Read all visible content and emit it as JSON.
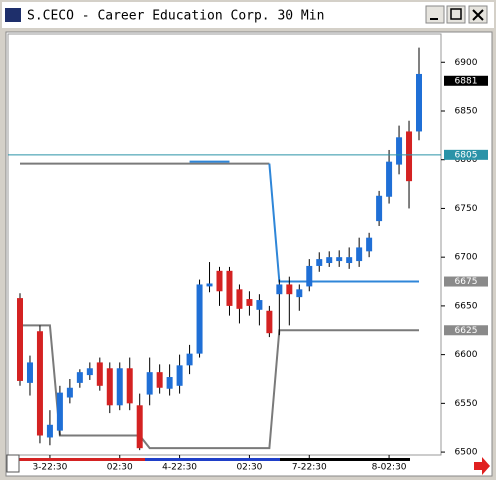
{
  "chart_data": {
    "type": "candlestick",
    "title": "S.CECO - Career Education Corp. 30 Min",
    "categories": [
      null,
      null,
      null,
      "3-22:30",
      null,
      null,
      null,
      null,
      null,
      null,
      "02:30",
      null,
      null,
      null,
      null,
      null,
      "4-22:30",
      null,
      null,
      null,
      null,
      null,
      null,
      "02:30",
      null,
      null,
      null,
      null,
      null,
      "7-22:30",
      null,
      null,
      null,
      null,
      null,
      null,
      null,
      "8-02:30",
      null,
      null,
      null
    ],
    "open": [
      6658,
      6571,
      6624,
      6515,
      6522,
      6556,
      6571,
      6579,
      6592,
      6586,
      6548,
      6586,
      6548,
      6559,
      6582,
      6565,
      6568,
      6589,
      6601,
      6670,
      6686,
      6686,
      6667,
      6657,
      6646,
      6645,
      6662,
      6672,
      6659,
      6670,
      6691,
      6694,
      6696,
      6694,
      6696,
      6706,
      6737,
      6762,
      6795,
      6829,
      6829
    ],
    "high": [
      6663,
      6599,
      6630,
      6543,
      6568,
      6575,
      6585,
      6592,
      6597,
      6592,
      6592,
      6597,
      6560,
      6597,
      6590,
      6590,
      6600,
      6610,
      6677,
      6695,
      6690,
      6690,
      6672,
      6665,
      6662,
      6650,
      6677,
      6680,
      6672,
      6698,
      6705,
      6706,
      6707,
      6710,
      6720,
      6725,
      6768,
      6810,
      6835,
      6840,
      6915
    ],
    "low": [
      6568,
      6558,
      6509,
      6507,
      6517,
      6550,
      6566,
      6574,
      6563,
      6540,
      6543,
      6543,
      6502,
      6548,
      6560,
      6558,
      6560,
      6580,
      6597,
      6664,
      6650,
      6640,
      6632,
      6640,
      6630,
      6618,
      6620,
      6630,
      6645,
      6665,
      6685,
      6690,
      6690,
      6688,
      6690,
      6700,
      6732,
      6755,
      6785,
      6750,
      6820
    ],
    "close": [
      6573,
      6592,
      6517,
      6528,
      6561,
      6566,
      6582,
      6586,
      6568,
      6548,
      6586,
      6550,
      6504,
      6582,
      6566,
      6577,
      6589,
      6601,
      6672,
      6673,
      6665,
      6650,
      6647,
      6650,
      6656,
      6622,
      6672,
      6662,
      6667,
      6691,
      6698,
      6700,
      6700,
      6700,
      6710,
      6720,
      6763,
      6798,
      6823,
      6778,
      6888
    ],
    "up_color": "#1f6fd6",
    "down_color": "#d42222",
    "lines": [
      {
        "color": "#7a7a7a",
        "values": [
          6630,
          6630,
          6630,
          6630,
          6517,
          6517,
          6517,
          6517,
          6517,
          6517,
          6517,
          6517,
          6517,
          6504,
          6504,
          6504,
          6504,
          6504,
          6504,
          6504,
          6504,
          6504,
          6504,
          6504,
          6504,
          6504,
          6625,
          6625,
          6625,
          6625,
          6625,
          6625,
          6625,
          6625,
          6625,
          6625,
          6625,
          6625,
          6625,
          6625,
          6625
        ]
      },
      {
        "color": "#7a7a7a",
        "values": [
          6796,
          6796,
          6796,
          6796,
          6796,
          6796,
          6796,
          6796,
          6796,
          6796,
          6796,
          6796,
          6796,
          6796,
          6796,
          6796,
          6796,
          6796,
          6796,
          6796,
          6796,
          6796,
          6796,
          6796,
          6796,
          6796,
          null,
          null,
          null,
          null,
          null,
          null,
          null,
          null,
          null,
          null,
          null,
          null,
          null,
          null,
          null
        ]
      },
      {
        "color": "#2f86d8",
        "values": [
          null,
          null,
          null,
          null,
          null,
          null,
          null,
          null,
          null,
          null,
          null,
          null,
          null,
          null,
          null,
          null,
          null,
          6798,
          6798,
          6798,
          6798,
          6798,
          null,
          null,
          null,
          6796,
          6675,
          6675,
          6675,
          6675,
          6675,
          6675,
          6675,
          6675,
          6675,
          6675,
          6675,
          6675,
          6675,
          6675,
          6675
        ]
      }
    ],
    "markers": [
      {
        "value": 6881,
        "color": "#000000"
      },
      {
        "value": 6805,
        "color": "#2a93a8",
        "line": true
      },
      {
        "value": 6675,
        "color": "#8a8a8a"
      },
      {
        "value": 6625,
        "color": "#8a8a8a"
      }
    ],
    "ylim": [
      6497,
      6929
    ],
    "yticks": [
      6500,
      6550,
      6600,
      6650,
      6700,
      6750,
      6800,
      6850,
      6900
    ]
  }
}
